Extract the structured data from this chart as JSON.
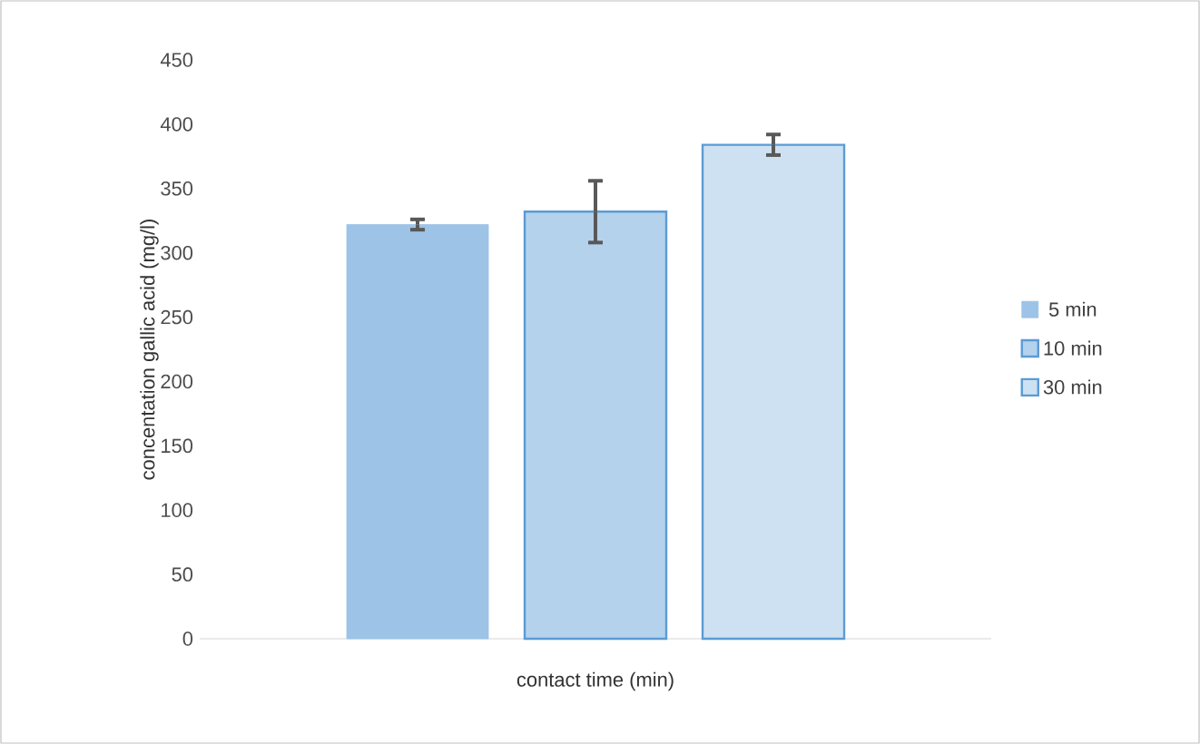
{
  "chart_data": {
    "type": "bar",
    "xlabel": "contact time (min)",
    "ylabel": "concentation gallic acid (mg/l)",
    "categories": [
      null
    ],
    "series": [
      {
        "name": "5 min",
        "color": "#9dc3e6",
        "values": [
          322
        ],
        "errors": [
          4
        ]
      },
      {
        "name": "10 min",
        "color": "#5b9bd5",
        "values": [
          332
        ],
        "errors": [
          24
        ]
      },
      {
        "name": "30 min",
        "color": "#5b9bd5",
        "values": [
          384
        ],
        "errors": [
          8
        ]
      }
    ],
    "ylim": [
      0,
      450
    ],
    "yticks": [
      0,
      50,
      100,
      150,
      200,
      250,
      300,
      350,
      400,
      450
    ],
    "grid": false,
    "legend": "right"
  }
}
